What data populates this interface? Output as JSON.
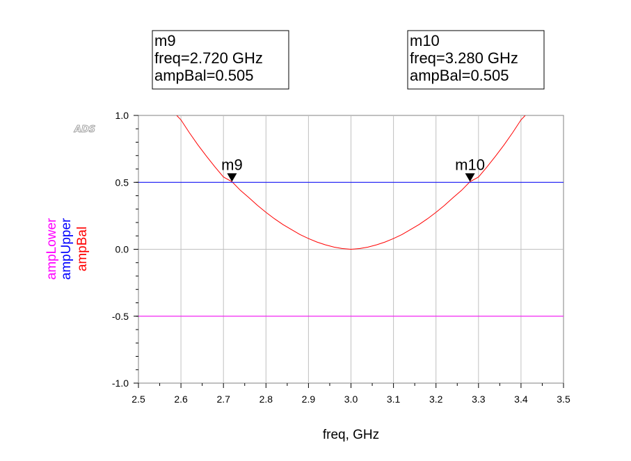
{
  "chart_data": {
    "type": "line",
    "xlabel": "freq, GHz",
    "ylabels": [
      {
        "name": "ampLower",
        "color": "#ff00ff"
      },
      {
        "name": "ampUpper",
        "color": "#0000ff"
      },
      {
        "name": "ampBal",
        "color": "#ff0000"
      }
    ],
    "xlim": [
      2.5,
      3.5
    ],
    "ylim": [
      -1.0,
      1.0
    ],
    "xticks": [
      "2.5",
      "2.6",
      "2.7",
      "2.8",
      "2.9",
      "3.0",
      "3.1",
      "3.2",
      "3.3",
      "3.4",
      "3.5"
    ],
    "yticks": [
      "1.0",
      "0.5",
      "0.0",
      "-0.5",
      "-1.0"
    ],
    "grid": true,
    "series": [
      {
        "name": "ampBal",
        "color": "#ff0000",
        "x": [
          2.59,
          2.6,
          2.62,
          2.64,
          2.66,
          2.68,
          2.7,
          2.72,
          2.74,
          2.76,
          2.78,
          2.8,
          2.82,
          2.84,
          2.86,
          2.88,
          2.9,
          2.92,
          2.94,
          2.96,
          2.98,
          3.0,
          3.02,
          3.04,
          3.06,
          3.08,
          3.1,
          3.12,
          3.14,
          3.16,
          3.18,
          3.2,
          3.22,
          3.24,
          3.26,
          3.28,
          3.3,
          3.32,
          3.34,
          3.36,
          3.38,
          3.4,
          3.41
        ],
        "y": [
          1.0,
          0.967,
          0.87,
          0.78,
          0.695,
          0.615,
          0.54,
          0.505,
          0.44,
          0.385,
          0.328,
          0.276,
          0.228,
          0.185,
          0.147,
          0.11,
          0.08,
          0.054,
          0.033,
          0.016,
          0.005,
          0.0,
          0.005,
          0.016,
          0.033,
          0.054,
          0.08,
          0.11,
          0.147,
          0.185,
          0.228,
          0.276,
          0.328,
          0.385,
          0.44,
          0.505,
          0.54,
          0.615,
          0.695,
          0.78,
          0.87,
          0.967,
          1.0
        ]
      },
      {
        "name": "ampUpper",
        "color": "#0000ff",
        "x": [
          2.5,
          3.5
        ],
        "y": [
          0.5,
          0.5
        ]
      },
      {
        "name": "ampLower",
        "color": "#ff00ff",
        "x": [
          2.5,
          3.5
        ],
        "y": [
          -0.5,
          -0.5
        ]
      }
    ],
    "markers": [
      {
        "id": "m9",
        "x": 2.72,
        "y": 0.505,
        "lines": [
          "m9",
          "freq=2.720 GHz",
          "ampBal=0.505"
        ]
      },
      {
        "id": "m10",
        "x": 3.28,
        "y": 0.505,
        "lines": [
          "m10",
          "freq=3.280 GHz",
          "ampBal=0.505"
        ]
      }
    ]
  },
  "watermark": "ADS"
}
